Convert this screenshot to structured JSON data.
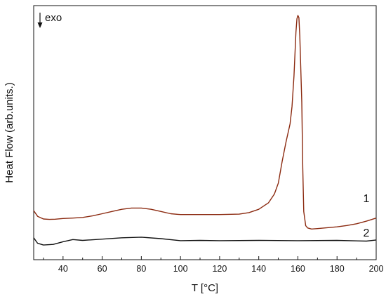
{
  "chart_data": {
    "type": "line",
    "title": "",
    "xlabel": "T [°C]",
    "ylabel": "Heat Flow (arb.units.)",
    "xlim": [
      25,
      200
    ],
    "x_ticks": [
      40,
      60,
      80,
      100,
      120,
      140,
      160,
      180,
      200
    ],
    "y_ticks_shown": false,
    "grid": false,
    "legend": "none",
    "annotation": "exo",
    "series": [
      {
        "name": "1",
        "color": "#8b2a10",
        "x": [
          25,
          27,
          30,
          33,
          36,
          40,
          45,
          50,
          55,
          60,
          65,
          70,
          75,
          80,
          85,
          90,
          95,
          100,
          110,
          120,
          130,
          135,
          140,
          145,
          148,
          150,
          152,
          154,
          156,
          157,
          158,
          159,
          159.5,
          160,
          160.5,
          161,
          162,
          162.5,
          163,
          164,
          165,
          167,
          170,
          175,
          180,
          185,
          190,
          195,
          200
        ],
        "y": [
          10.4,
          7.8,
          6.6,
          6.4,
          6.5,
          6.8,
          7.0,
          7.3,
          8.0,
          9.0,
          10.0,
          11.0,
          11.6,
          11.6,
          11.0,
          10.0,
          9.0,
          8.6,
          8.6,
          8.6,
          8.8,
          9.5,
          11.0,
          14.0,
          18.0,
          23.0,
          33.0,
          42.0,
          50.0,
          58.0,
          72.0,
          92.0,
          98.0,
          99.5,
          98.5,
          90.0,
          60.0,
          30.0,
          10.0,
          3.5,
          2.5,
          2.0,
          2.2,
          2.6,
          3.0,
          3.6,
          4.4,
          5.6,
          7.0
        ]
      },
      {
        "name": "2",
        "color": "#111111",
        "x": [
          25,
          27,
          30,
          35,
          40,
          45,
          50,
          60,
          70,
          80,
          90,
          100,
          110,
          120,
          140,
          160,
          180,
          195,
          200
        ],
        "y": [
          -2.0,
          -4.5,
          -5.3,
          -5.0,
          -3.8,
          -2.8,
          -3.2,
          -2.6,
          -2.0,
          -1.7,
          -2.4,
          -3.3,
          -3.2,
          -3.3,
          -3.2,
          -3.3,
          -3.2,
          -3.5,
          -3.0
        ]
      }
    ]
  }
}
